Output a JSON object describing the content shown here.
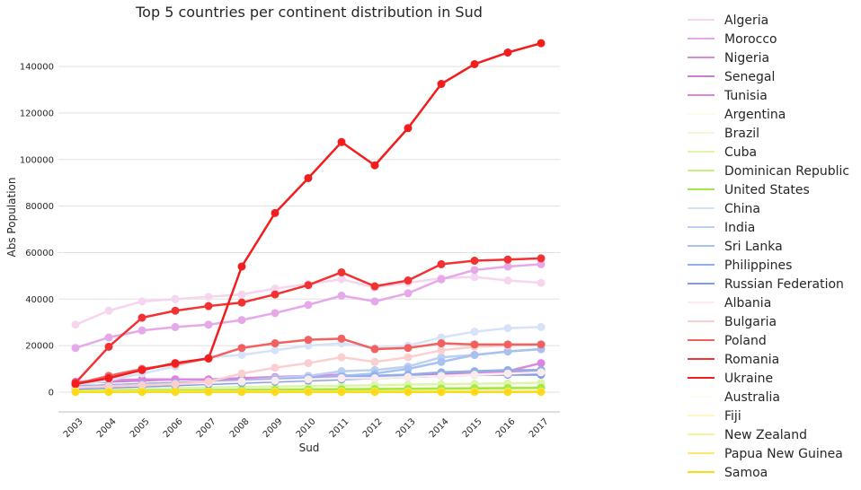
{
  "chart_data": {
    "type": "line",
    "title": "Top 5 countries per continent distribution in Sud",
    "xlabel": "Sud",
    "ylabel": "Abs Population",
    "x": [
      "2003",
      "2004",
      "2005",
      "2006",
      "2007",
      "2008",
      "2009",
      "2010",
      "2011",
      "2012",
      "2013",
      "2014",
      "2015",
      "2016",
      "2017"
    ],
    "ylim": [
      -8500,
      157000
    ],
    "yticks": [
      0,
      20000,
      40000,
      60000,
      80000,
      100000,
      120000,
      140000
    ],
    "ytick_labels": [
      "0",
      "20000",
      "40000",
      "60000",
      "80000",
      "100000",
      "120000",
      "140000"
    ],
    "grid": "horizontal",
    "legend_position": "right",
    "series": [
      {
        "name": "Algeria",
        "color": "#f5d6ee",
        "values": [
          29000,
          35000,
          39000,
          40000,
          41000,
          42000,
          44500,
          46500,
          48500,
          45000,
          47000,
          49000,
          49500,
          48000,
          47000
        ]
      },
      {
        "name": "Morocco",
        "color": "#e5a8e8",
        "values": [
          19000,
          23500,
          26500,
          28000,
          29000,
          31000,
          34000,
          37500,
          41500,
          39000,
          42500,
          48500,
          52500,
          54000,
          55000
        ]
      },
      {
        "name": "Nigeria",
        "color": "#d98be0",
        "values": [
          2500,
          3000,
          3500,
          4000,
          4500,
          5000,
          5500,
          6000,
          6500,
          7000,
          7500,
          8000,
          8500,
          9000,
          9500
        ]
      },
      {
        "name": "Senegal",
        "color": "#c77fcf",
        "values": [
          4000,
          4500,
          5000,
          5500,
          5500,
          5500,
          6000,
          6500,
          7000,
          6500,
          7000,
          7500,
          8000,
          8500,
          9000
        ]
      },
      {
        "name": "Tunisia",
        "color": "#dc85de",
        "values": [
          4500,
          5000,
          5500,
          5500,
          5500,
          6000,
          6500,
          7000,
          7500,
          6000,
          6500,
          7000,
          8000,
          9000,
          12500
        ]
      },
      {
        "name": "Argentina",
        "color": "#fbfde8",
        "values": [
          800,
          900,
          1000,
          1100,
          1200,
          1300,
          1400,
          1500,
          1600,
          1700,
          1800,
          1900,
          2000,
          2100,
          2200
        ]
      },
      {
        "name": "Brazil",
        "color": "#f1fad0",
        "values": [
          600,
          700,
          800,
          900,
          1000,
          1100,
          1200,
          1300,
          1400,
          1500,
          1600,
          1700,
          1800,
          1900,
          2000
        ]
      },
      {
        "name": "Cuba",
        "color": "#ddf5a8",
        "values": [
          1200,
          1400,
          1600,
          1800,
          2000,
          2200,
          2400,
          2600,
          2800,
          3000,
          3200,
          3400,
          3600,
          3800,
          4000
        ]
      },
      {
        "name": "Dominican Republic",
        "color": "#c9ef85",
        "values": [
          500,
          600,
          700,
          800,
          900,
          1000,
          1100,
          1200,
          1300,
          1400,
          1500,
          1600,
          1700,
          1800,
          1900
        ]
      },
      {
        "name": "United States",
        "color": "#a4e844",
        "values": [
          400,
          500,
          600,
          700,
          800,
          900,
          1000,
          1100,
          1200,
          1300,
          1400,
          1500,
          1600,
          1700,
          1800
        ]
      },
      {
        "name": "China",
        "color": "#d6e2f7",
        "values": [
          3000,
          5000,
          8000,
          11000,
          15000,
          16000,
          18000,
          20000,
          21000,
          19000,
          20000,
          23500,
          26000,
          27500,
          28000
        ]
      },
      {
        "name": "India",
        "color": "#bcd0f4",
        "values": [
          2000,
          2500,
          3000,
          3500,
          4000,
          5000,
          6000,
          7000,
          9000,
          9500,
          11000,
          15000,
          16000,
          17500,
          18500
        ]
      },
      {
        "name": "Sri Lanka",
        "color": "#a7c2f0",
        "values": [
          1500,
          2000,
          2500,
          3000,
          3500,
          4000,
          5000,
          6000,
          7000,
          8000,
          10000,
          13000,
          16000,
          17500,
          18500
        ]
      },
      {
        "name": "Philippines",
        "color": "#8fb0e8",
        "values": [
          2500,
          3000,
          3500,
          4000,
          4500,
          5000,
          5500,
          6000,
          6500,
          7000,
          7500,
          8500,
          9000,
          9500,
          9500
        ]
      },
      {
        "name": "Russian Federation",
        "color": "#7f9cec",
        "values": [
          1500,
          2000,
          2500,
          3000,
          3500,
          4000,
          4500,
          5000,
          5500,
          6000,
          6500,
          7000,
          7500,
          7500,
          7500
        ]
      },
      {
        "name": "Albania",
        "color": "#fbecec",
        "values": [
          2000,
          2500,
          3000,
          3500,
          4000,
          4500,
          5000,
          5500,
          6000,
          6000,
          6500,
          7000,
          7500,
          8000,
          8500
        ]
      },
      {
        "name": "Bulgaria",
        "color": "#fbcfcf",
        "values": [
          2000,
          2500,
          3000,
          3500,
          4500,
          8000,
          10500,
          12500,
          15000,
          13000,
          15000,
          18000,
          19500,
          20000,
          20500
        ]
      },
      {
        "name": "Poland",
        "color": "#f26060",
        "values": [
          3500,
          7000,
          10000,
          12000,
          14500,
          19000,
          21000,
          22500,
          23000,
          18500,
          19000,
          21000,
          20500,
          20500,
          20500
        ]
      },
      {
        "name": "Romania",
        "color": "#f23232",
        "values": [
          4000,
          19500,
          32000,
          35000,
          37000,
          38500,
          42000,
          46000,
          51500,
          45500,
          48000,
          55000,
          56500,
          57000,
          57500
        ]
      },
      {
        "name": "Ukraine",
        "color": "#f21d1d",
        "values": [
          3500,
          6000,
          9500,
          12500,
          14500,
          54000,
          77000,
          92000,
          107500,
          97500,
          113500,
          132500,
          141000,
          146000,
          150000
        ]
      },
      {
        "name": "Australia",
        "color": "#fefdf0",
        "values": [
          300,
          300,
          300,
          300,
          300,
          300,
          300,
          300,
          300,
          300,
          300,
          300,
          300,
          300,
          300
        ]
      },
      {
        "name": "Fiji",
        "color": "#fdf7c6",
        "values": [
          250,
          250,
          250,
          250,
          250,
          250,
          250,
          250,
          250,
          250,
          250,
          250,
          250,
          250,
          250
        ]
      },
      {
        "name": "New Zealand",
        "color": "#fcef9a",
        "values": [
          200,
          200,
          200,
          200,
          200,
          200,
          200,
          200,
          200,
          200,
          200,
          200,
          200,
          200,
          200
        ]
      },
      {
        "name": "Papua New Guinea",
        "color": "#fce870",
        "values": [
          150,
          150,
          150,
          150,
          150,
          150,
          150,
          150,
          150,
          150,
          150,
          150,
          150,
          150,
          150
        ]
      },
      {
        "name": "Samoa",
        "color": "#fcdc1a",
        "values": [
          100,
          100,
          100,
          100,
          100,
          100,
          100,
          100,
          100,
          100,
          100,
          100,
          100,
          100,
          100
        ]
      }
    ]
  }
}
